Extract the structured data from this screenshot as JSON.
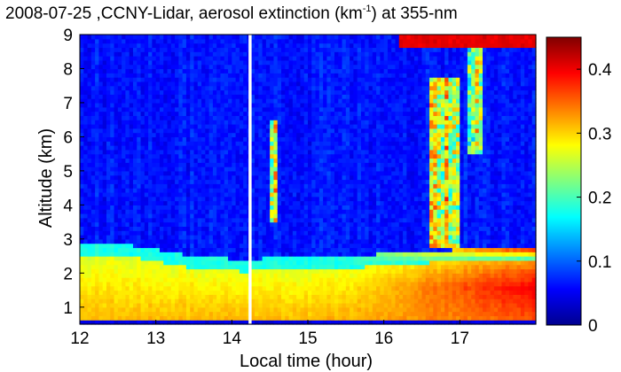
{
  "chart_data": {
    "type": "heatmap",
    "title_parts": {
      "prefix": "2008-07-25 ,CCNY-Lidar, aerosol extinction (km",
      "superscript": "-1",
      "suffix": ") at 355-nm"
    },
    "xlabel": "Local time (hour)",
    "ylabel": "Altitude (km)",
    "xlim": [
      12,
      18
    ],
    "ylim": [
      0.5,
      9
    ],
    "x_ticks": [
      "12",
      "13",
      "14",
      "15",
      "16",
      "17"
    ],
    "y_ticks": [
      "1",
      "2",
      "3",
      "4",
      "5",
      "6",
      "7",
      "8",
      "9"
    ],
    "colorbar": {
      "range": [
        0,
        0.45
      ],
      "ticks": [
        "0",
        "0.1",
        "0.2",
        "0.3",
        "0.4"
      ],
      "colormap": "jet"
    },
    "data_gap": {
      "x_start": 14.22,
      "x_end": 14.26
    },
    "features": {
      "boundary_layer_top_km": [
        {
          "x": 12.0,
          "y": 2.85
        },
        {
          "x": 12.5,
          "y": 2.9
        },
        {
          "x": 13.0,
          "y": 2.7
        },
        {
          "x": 13.5,
          "y": 2.5
        },
        {
          "x": 14.2,
          "y": 2.4
        },
        {
          "x": 14.5,
          "y": 2.45
        },
        {
          "x": 15.5,
          "y": 2.5
        },
        {
          "x": 16.5,
          "y": 2.65
        },
        {
          "x": 17.0,
          "y": 2.7
        },
        {
          "x": 18.0,
          "y": 2.75
        }
      ],
      "cloud_layer_max_extinction": 0.45
    }
  }
}
